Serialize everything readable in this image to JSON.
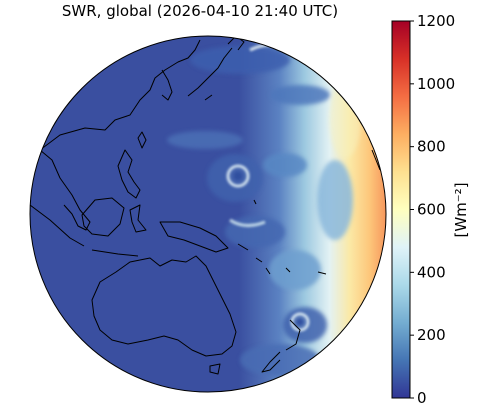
{
  "title": "SWR, global (2026-04-10 21:40 UTC)",
  "colorbar": {
    "label": "[Wm⁻²]",
    "min": 0,
    "max": 1200,
    "ticks": [
      {
        "value": 0,
        "label": "0"
      },
      {
        "value": 200,
        "label": "200"
      },
      {
        "value": 400,
        "label": "400"
      },
      {
        "value": 600,
        "label": "600"
      },
      {
        "value": 800,
        "label": "800"
      },
      {
        "value": 1000,
        "label": "1000"
      },
      {
        "value": 1200,
        "label": "1200"
      }
    ],
    "colors": [
      "#313695",
      "#4575b4",
      "#74add1",
      "#abd9e9",
      "#e0f3f8",
      "#ffffbf",
      "#fee090",
      "#fdae61",
      "#f46d43",
      "#d73027",
      "#a50026"
    ]
  },
  "map": {
    "projection": "orthographic",
    "field": "shortwave radiation",
    "night_color": "#3a4fa0",
    "coastline_color": "#000000"
  }
}
